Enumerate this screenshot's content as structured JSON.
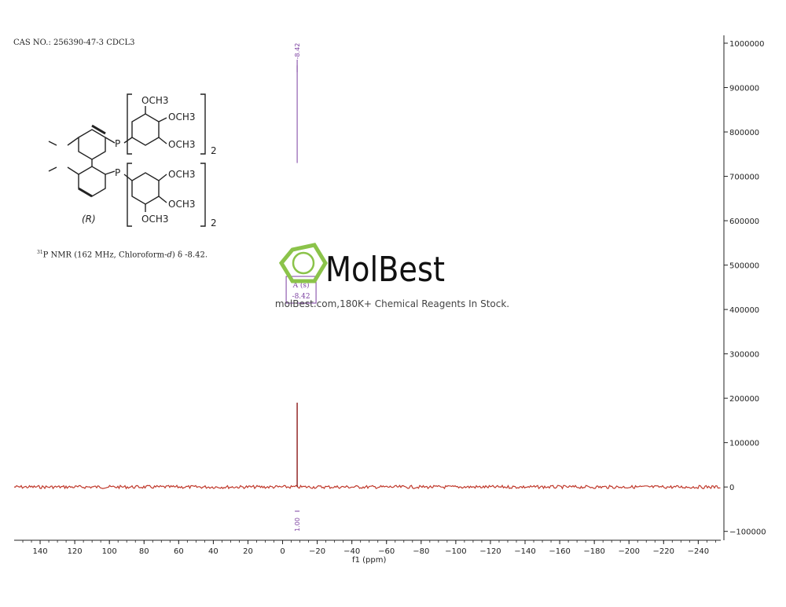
{
  "header": {
    "cas_line": "CAS NO.: 256390-47-3 CDCL3"
  },
  "molecule": {
    "label": "(R)",
    "substituent": "OCH3",
    "phosphorus": "P",
    "subscript": "2"
  },
  "nmr_description": {
    "nucleus_mass": "31",
    "text": "P NMR (162 MHz, Chloroform-",
    "solvent_suffix": "d",
    "shift": ") δ -8.42."
  },
  "watermark": {
    "brand": "MolBest",
    "tagline": "molBest.com,180K+ Chemical Reagents In Stock."
  },
  "colors": {
    "spectrum": "#8b1a1a",
    "baseline_noise": "#c0392b",
    "annotation": "#7b3fa0",
    "logo_green": "#8bc34a"
  },
  "chart_data": {
    "type": "line",
    "title": "",
    "xlabel": "f1 (ppm)",
    "ylabel": "",
    "xlim": [
      155,
      -253
    ],
    "ylim": [
      -120000,
      1000000
    ],
    "x_reversed": true,
    "y_axis_side": "right",
    "x_ticks": [
      140,
      120,
      100,
      80,
      60,
      40,
      20,
      0,
      -20,
      -40,
      -60,
      -80,
      -100,
      -120,
      -140,
      -160,
      -180,
      -200,
      -220,
      -240
    ],
    "x_tick_labels": [
      "140",
      "120",
      "100",
      "80",
      "60",
      "40",
      "20",
      "0",
      "−20",
      "−40",
      "−60",
      "−80",
      "−100",
      "−120",
      "−140",
      "−160",
      "−180",
      "−200",
      "−220",
      "−240"
    ],
    "y_ticks": [
      1000000,
      900000,
      800000,
      700000,
      600000,
      500000,
      400000,
      300000,
      200000,
      100000,
      0,
      -100000
    ],
    "y_tick_labels": [
      "1000000",
      "900000",
      "800000",
      "700000",
      "600000",
      "500000",
      "400000",
      "300000",
      "200000",
      "100000",
      "0",
      "−100000"
    ],
    "peaks": [
      {
        "shift": -8.42,
        "intensity": 190000,
        "label": "-8.42"
      }
    ],
    "peak_label": "-8.42",
    "integral_line": {
      "x": -8.42,
      "from": 730000,
      "to": 950000
    },
    "multiplet": {
      "x": -8.42,
      "letter": "A",
      "mult": "(s)",
      "value": "-8.42"
    },
    "integration": {
      "x": -8.42,
      "value": "1.00"
    },
    "grid": false,
    "legend": "none"
  }
}
